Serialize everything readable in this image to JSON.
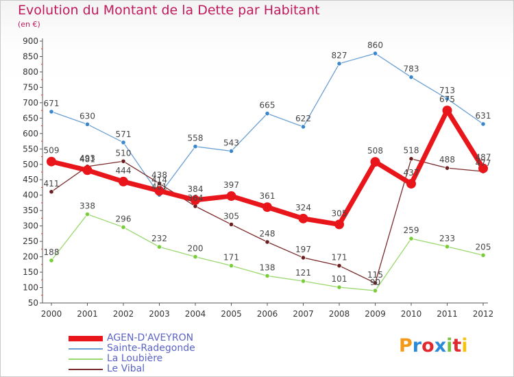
{
  "header": {
    "title": "Evolution du Montant de la Dette par Habitant",
    "subtitle": "(en €)"
  },
  "logo": {
    "text": "Proxiti",
    "colors": [
      "#f39a1a",
      "#2b8ad6",
      "#e0282e",
      "#2b8ad6",
      "#7ac143",
      "#e0282e",
      "#f5c20f"
    ]
  },
  "chart_data": {
    "type": "line",
    "categories": [
      "2000",
      "2001",
      "2002",
      "2003",
      "2004",
      "2005",
      "2006",
      "2007",
      "2008",
      "2009",
      "2010",
      "2011",
      "2012"
    ],
    "ylim": [
      50,
      900
    ],
    "yticks": [
      50,
      100,
      150,
      200,
      250,
      300,
      350,
      400,
      450,
      500,
      550,
      600,
      650,
      700,
      750,
      800,
      850,
      900
    ],
    "grid": false,
    "legend_position": "bottom-left",
    "series": [
      {
        "name": "AGEN-D'AVEYRON",
        "color": "#e8161b",
        "emphasis": true,
        "values": [
          509,
          481,
          444,
          414,
          384,
          397,
          361,
          324,
          305,
          508,
          437,
          675,
          487
        ],
        "labels": [
          "509",
          "481",
          "444",
          "414",
          "384",
          "397",
          "361",
          "324",
          "305",
          "508",
          "437",
          "675",
          "487"
        ]
      },
      {
        "name": "Sainte-Radegonde",
        "color": "#6a9fd4",
        "marker": "#3a87cc",
        "values": [
          671,
          630,
          571,
          401,
          558,
          543,
          665,
          622,
          827,
          860,
          783,
          713,
          631
        ],
        "labels": [
          "671",
          "630",
          "571",
          "401",
          "558",
          "543",
          "665",
          "622",
          "827",
          "860",
          "783",
          "713",
          "631"
        ]
      },
      {
        "name": "La Loubière",
        "color": "#9ad86e",
        "marker": "#7acd3a",
        "values": [
          188,
          338,
          296,
          232,
          200,
          171,
          138,
          121,
          101,
          90,
          259,
          233,
          205
        ],
        "labels": [
          "188",
          "338",
          "296",
          "232",
          "200",
          "171",
          "138",
          "121",
          "101",
          "90",
          "259",
          "233",
          "205"
        ]
      },
      {
        "name": "Le Vibal",
        "color": "#7a2a2a",
        "marker": "#6b1e1e",
        "values": [
          411,
          493,
          510,
          438,
          364,
          305,
          248,
          197,
          171,
          115,
          518,
          488,
          477
        ],
        "labels": [
          "411",
          "493",
          "510",
          "438",
          "364",
          "305",
          "248",
          "197",
          "171",
          "115",
          "518",
          "488",
          "477"
        ]
      }
    ]
  }
}
